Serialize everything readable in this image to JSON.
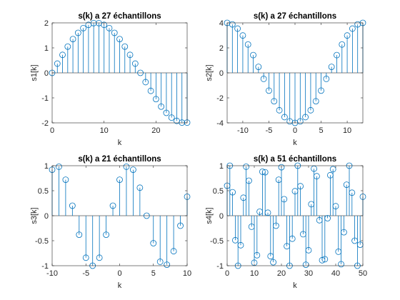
{
  "chart_data": [
    {
      "type": "stem",
      "title": "s(k) a 27 échantillons",
      "xlabel": "k",
      "ylabel": "s1[k]",
      "color": "#0072bd",
      "x": [
        0,
        1,
        2,
        3,
        4,
        5,
        6,
        7,
        8,
        9,
        10,
        11,
        12,
        13,
        14,
        15,
        16,
        17,
        18,
        19,
        20,
        21,
        22,
        23,
        24,
        25,
        26
      ],
      "values": [
        0,
        0.37,
        0.72,
        1.05,
        1.35,
        1.6,
        1.79,
        1.92,
        1.99,
        1.99,
        1.92,
        1.79,
        1.6,
        1.35,
        1.05,
        0.72,
        0.37,
        0,
        -0.37,
        -0.72,
        -1.05,
        -1.35,
        -1.6,
        -1.79,
        -1.92,
        -1.99,
        -1.99
      ],
      "xlim": [
        0,
        26
      ],
      "xticks": [
        0,
        10,
        20
      ],
      "ylim": [
        -2,
        2
      ],
      "yticks": [
        -2,
        -1,
        0,
        1,
        2
      ]
    },
    {
      "type": "stem",
      "title": "s(k) a 27 échantillons",
      "xlabel": "k",
      "ylabel": "s2[k]",
      "color": "#0072bd",
      "x": [
        -13,
        -12,
        -11,
        -10,
        -9,
        -8,
        -7,
        -6,
        -5,
        -4,
        -3,
        -2,
        -1,
        0,
        1,
        2,
        3,
        4,
        5,
        6,
        7,
        8,
        9,
        10,
        11,
        12,
        13
      ],
      "values": [
        4,
        3.88,
        3.54,
        2.99,
        2.27,
        1.42,
        0.48,
        -0.48,
        -1.42,
        -2.27,
        -2.99,
        -3.54,
        -3.88,
        -4,
        -3.88,
        -3.54,
        -2.99,
        -2.27,
        -1.42,
        -0.48,
        0.48,
        1.42,
        2.27,
        2.99,
        3.54,
        3.88,
        4
      ],
      "xlim": [
        -13,
        13
      ],
      "xticks": [
        -10,
        -5,
        0,
        5,
        10
      ],
      "ylim": [
        -4,
        4
      ],
      "yticks": [
        -4,
        -2,
        0,
        2,
        4
      ]
    },
    {
      "type": "stem",
      "title": "s(k) a 21 échantillons",
      "xlabel": "k",
      "ylabel": "s3[k]",
      "color": "#0072bd",
      "x": [
        -10,
        -9,
        -8,
        -7,
        -6,
        -5,
        -4,
        -3,
        -2,
        -1,
        0,
        1,
        2,
        3,
        4,
        5,
        6,
        7,
        8,
        9,
        10
      ],
      "values": [
        0.92,
        0.98,
        0.72,
        0.2,
        -0.38,
        -0.84,
        -1,
        -0.84,
        -0.38,
        0.2,
        0.72,
        0.98,
        0.92,
        0.56,
        0,
        -0.55,
        -0.92,
        -0.98,
        -0.71,
        -0.2,
        0.38
      ],
      "xlim": [
        -10,
        10
      ],
      "xticks": [
        -10,
        -5,
        0,
        5,
        10
      ],
      "ylim": [
        -1,
        1
      ],
      "yticks": [
        -1,
        -0.5,
        0,
        0.5,
        1
      ]
    },
    {
      "type": "stem",
      "title": "s(k) a 51 échantillons",
      "xlabel": "k",
      "ylabel": "s4[k]",
      "color": "#0072bd",
      "x": [
        0,
        1,
        2,
        3,
        4,
        5,
        6,
        7,
        8,
        9,
        10,
        11,
        12,
        13,
        14,
        15,
        16,
        17,
        18,
        19,
        20,
        21,
        22,
        23,
        24,
        25,
        26,
        27,
        28,
        29,
        30,
        31,
        32,
        33,
        34,
        35,
        36,
        37,
        38,
        39,
        40,
        41,
        42,
        43,
        44,
        45,
        46,
        47,
        48,
        49,
        50
      ],
      "values": [
        0.6,
        1,
        0.47,
        -0.49,
        -1,
        -0.59,
        0.36,
        0.98,
        0.7,
        -0.22,
        -0.94,
        -0.79,
        0.08,
        0.88,
        0.87,
        0.06,
        -0.81,
        -0.93,
        -0.2,
        0.72,
        0.97,
        0.33,
        -0.61,
        -1,
        -0.46,
        0.49,
        1,
        0.59,
        -0.37,
        -0.98,
        -0.69,
        0.23,
        0.94,
        0.79,
        -0.09,
        -0.89,
        -0.87,
        -0.05,
        0.81,
        0.93,
        0.19,
        -0.72,
        -0.97,
        -0.33,
        0.62,
        1,
        0.46,
        -0.5,
        -1,
        -0.58,
        0.38
      ],
      "xlim": [
        0,
        50
      ],
      "xticks": [
        0,
        10,
        20,
        30,
        40,
        50
      ],
      "ylim": [
        -1,
        1
      ],
      "yticks": [
        -1,
        -0.5,
        0,
        0.5,
        1
      ]
    }
  ]
}
